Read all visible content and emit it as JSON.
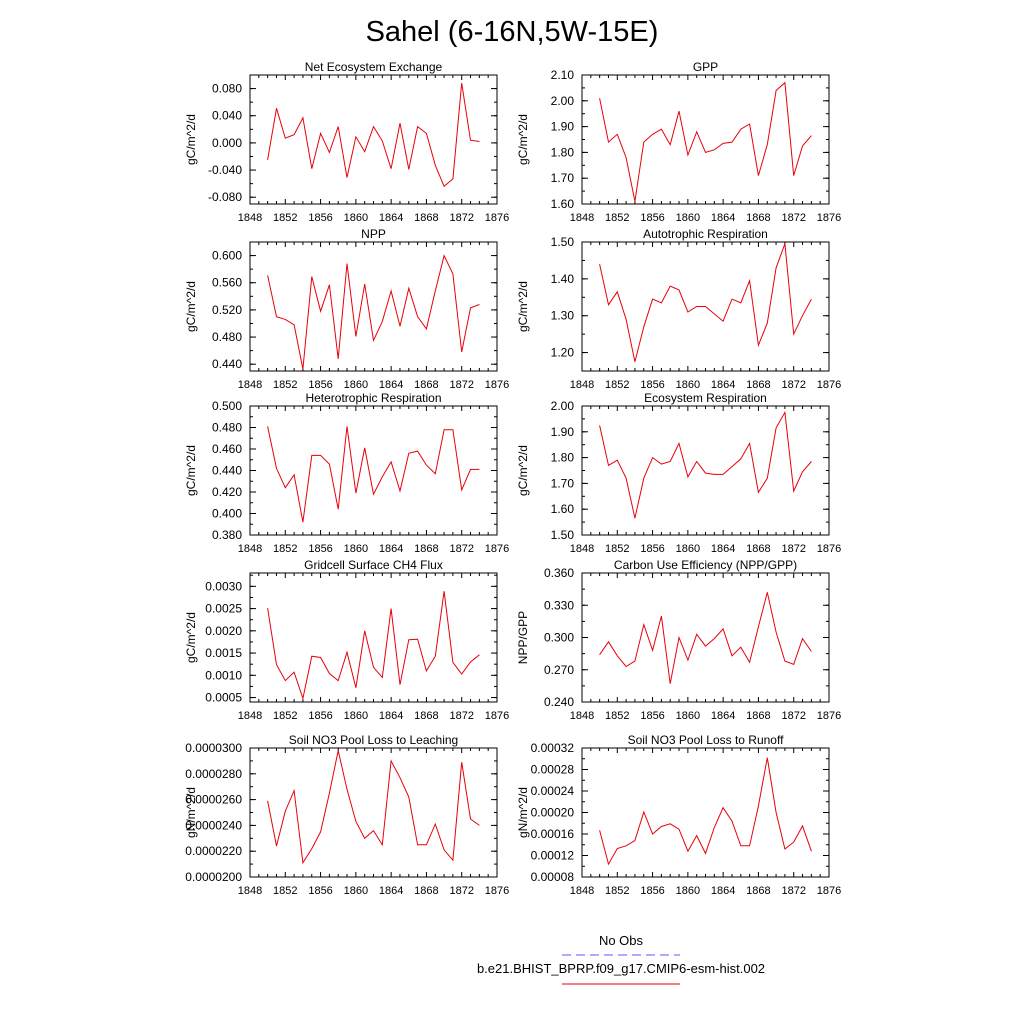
{
  "title": "Sahel (6-16N,5W-15E)",
  "legend": {
    "entries": [
      {
        "label": "No Obs",
        "color": "#5a5aff",
        "dash": true
      },
      {
        "label": "b.e21.BHIST_BPRP.f09_g17.CMIP6-esm-hist.002",
        "color": "#e8000b",
        "dash": false
      }
    ]
  },
  "chart_data": [
    {
      "type": "line",
      "title": "Net Ecosystem Exchange",
      "ylabel": "gC/m^2/d",
      "xlabel": "",
      "xlim": [
        1848,
        1876
      ],
      "ylim": [
        -0.09,
        0.1
      ],
      "xticks": [
        1848,
        1852,
        1856,
        1860,
        1864,
        1868,
        1872,
        1876
      ],
      "yticks": [
        "-0.080",
        "-0.040",
        "0.000",
        "0.040",
        "0.080"
      ],
      "x": [
        1850,
        1851,
        1852,
        1853,
        1854,
        1855,
        1856,
        1857,
        1858,
        1859,
        1860,
        1861,
        1862,
        1863,
        1864,
        1865,
        1866,
        1867,
        1868,
        1869,
        1870,
        1871,
        1872,
        1873,
        1874
      ],
      "series": [
        {
          "color": "#e8000b",
          "values": [
            -0.025,
            0.051,
            0.007,
            0.012,
            0.037,
            -0.038,
            0.014,
            -0.014,
            0.024,
            -0.051,
            0.009,
            -0.013,
            0.024,
            0.003,
            -0.038,
            0.029,
            -0.039,
            0.024,
            0.014,
            -0.033,
            -0.064,
            -0.053,
            0.088,
            0.004,
            0.002
          ]
        }
      ]
    },
    {
      "type": "line",
      "title": "GPP",
      "ylabel": "gC/m^2/d",
      "xlabel": "",
      "xlim": [
        1848,
        1876
      ],
      "ylim": [
        1.6,
        2.1
      ],
      "xticks": [
        1848,
        1852,
        1856,
        1860,
        1864,
        1868,
        1872,
        1876
      ],
      "yticks": [
        "1.60",
        "1.70",
        "1.80",
        "1.90",
        "2.00",
        "2.10"
      ],
      "x": [
        1850,
        1851,
        1852,
        1853,
        1854,
        1855,
        1856,
        1857,
        1858,
        1859,
        1860,
        1861,
        1862,
        1863,
        1864,
        1865,
        1866,
        1867,
        1868,
        1869,
        1870,
        1871,
        1872,
        1873,
        1874
      ],
      "series": [
        {
          "color": "#e8000b",
          "values": [
            2.01,
            1.84,
            1.87,
            1.78,
            1.61,
            1.84,
            1.87,
            1.89,
            1.83,
            1.96,
            1.79,
            1.88,
            1.8,
            1.81,
            1.835,
            1.84,
            1.89,
            1.91,
            1.71,
            1.83,
            2.04,
            2.07,
            1.71,
            1.825,
            1.865
          ]
        }
      ]
    },
    {
      "type": "line",
      "title": "NPP",
      "ylabel": "gC/m^2/d",
      "xlabel": "",
      "xlim": [
        1848,
        1876
      ],
      "ylim": [
        0.43,
        0.62
      ],
      "xticks": [
        1848,
        1852,
        1856,
        1860,
        1864,
        1868,
        1872,
        1876
      ],
      "yticks": [
        "0.440",
        "0.480",
        "0.520",
        "0.560",
        "0.600"
      ],
      "x": [
        1850,
        1851,
        1852,
        1853,
        1854,
        1855,
        1856,
        1857,
        1858,
        1859,
        1860,
        1861,
        1862,
        1863,
        1864,
        1865,
        1866,
        1867,
        1868,
        1869,
        1870,
        1871,
        1872,
        1873,
        1874
      ],
      "series": [
        {
          "color": "#e8000b",
          "values": [
            0.571,
            0.51,
            0.506,
            0.498,
            0.433,
            0.569,
            0.518,
            0.557,
            0.448,
            0.588,
            0.481,
            0.558,
            0.475,
            0.503,
            0.548,
            0.496,
            0.552,
            0.51,
            0.492,
            0.548,
            0.6,
            0.573,
            0.458,
            0.523,
            0.528
          ]
        }
      ]
    },
    {
      "type": "line",
      "title": "Autotrophic Respiration",
      "ylabel": "gC/m^2/d",
      "xlabel": "",
      "xlim": [
        1848,
        1876
      ],
      "ylim": [
        1.15,
        1.5
      ],
      "xticks": [
        1848,
        1852,
        1856,
        1860,
        1864,
        1868,
        1872,
        1876
      ],
      "yticks": [
        "1.20",
        "1.30",
        "1.40",
        "1.50"
      ],
      "x": [
        1850,
        1851,
        1852,
        1853,
        1854,
        1855,
        1856,
        1857,
        1858,
        1859,
        1860,
        1861,
        1862,
        1863,
        1864,
        1865,
        1866,
        1867,
        1868,
        1869,
        1870,
        1871,
        1872,
        1873,
        1874
      ],
      "series": [
        {
          "color": "#e8000b",
          "values": [
            1.44,
            1.33,
            1.365,
            1.29,
            1.175,
            1.27,
            1.345,
            1.335,
            1.38,
            1.37,
            1.31,
            1.325,
            1.325,
            1.305,
            1.285,
            1.345,
            1.335,
            1.395,
            1.22,
            1.28,
            1.43,
            1.495,
            1.25,
            1.3,
            1.345
          ]
        }
      ]
    },
    {
      "type": "line",
      "title": "Heterotrophic Respiration",
      "ylabel": "gC/m^2/d",
      "xlabel": "",
      "xlim": [
        1848,
        1876
      ],
      "ylim": [
        0.38,
        0.5
      ],
      "xticks": [
        1848,
        1852,
        1856,
        1860,
        1864,
        1868,
        1872,
        1876
      ],
      "yticks": [
        "0.380",
        "0.400",
        "0.420",
        "0.440",
        "0.460",
        "0.480",
        "0.500"
      ],
      "x": [
        1850,
        1851,
        1852,
        1853,
        1854,
        1855,
        1856,
        1857,
        1858,
        1859,
        1860,
        1861,
        1862,
        1863,
        1864,
        1865,
        1866,
        1867,
        1868,
        1869,
        1870,
        1871,
        1872,
        1873,
        1874
      ],
      "series": [
        {
          "color": "#e8000b",
          "values": [
            0.481,
            0.442,
            0.424,
            0.436,
            0.392,
            0.454,
            0.454,
            0.446,
            0.404,
            0.481,
            0.419,
            0.461,
            0.418,
            0.434,
            0.448,
            0.421,
            0.456,
            0.458,
            0.445,
            0.437,
            0.478,
            0.478,
            0.422,
            0.441,
            0.441
          ]
        }
      ]
    },
    {
      "type": "line",
      "title": "Ecosystem Respiration",
      "ylabel": "gC/m^2/d",
      "xlabel": "",
      "xlim": [
        1848,
        1876
      ],
      "ylim": [
        1.5,
        2.0
      ],
      "xticks": [
        1848,
        1852,
        1856,
        1860,
        1864,
        1868,
        1872,
        1876
      ],
      "yticks": [
        "1.50",
        "1.60",
        "1.70",
        "1.80",
        "1.90",
        "2.00"
      ],
      "x": [
        1850,
        1851,
        1852,
        1853,
        1854,
        1855,
        1856,
        1857,
        1858,
        1859,
        1860,
        1861,
        1862,
        1863,
        1864,
        1865,
        1866,
        1867,
        1868,
        1869,
        1870,
        1871,
        1872,
        1873,
        1874
      ],
      "series": [
        {
          "color": "#e8000b",
          "values": [
            1.925,
            1.77,
            1.79,
            1.72,
            1.565,
            1.72,
            1.8,
            1.775,
            1.785,
            1.855,
            1.725,
            1.785,
            1.74,
            1.735,
            1.735,
            1.765,
            1.795,
            1.855,
            1.665,
            1.72,
            1.915,
            1.975,
            1.67,
            1.745,
            1.785
          ]
        }
      ]
    },
    {
      "type": "line",
      "title": "Gridcell Surface CH4 Flux",
      "ylabel": "gC/m^2/d",
      "xlabel": "",
      "xlim": [
        1848,
        1876
      ],
      "ylim": [
        0.0004,
        0.0033
      ],
      "xticks": [
        1848,
        1852,
        1856,
        1860,
        1864,
        1868,
        1872,
        1876
      ],
      "yticks": [
        "0.0005",
        "0.0010",
        "0.0015",
        "0.0020",
        "0.0025",
        "0.0030"
      ],
      "x": [
        1850,
        1851,
        1852,
        1853,
        1854,
        1855,
        1856,
        1857,
        1858,
        1859,
        1860,
        1861,
        1862,
        1863,
        1864,
        1865,
        1866,
        1867,
        1868,
        1869,
        1870,
        1871,
        1872,
        1873,
        1874
      ],
      "series": [
        {
          "color": "#e8000b",
          "values": [
            0.00251,
            0.00124,
            0.00088,
            0.00107,
            0.00048,
            0.00143,
            0.0014,
            0.00104,
            0.00088,
            0.00152,
            0.00072,
            0.002,
            0.00118,
            0.00095,
            0.0025,
            0.00079,
            0.0018,
            0.00181,
            0.0011,
            0.00143,
            0.00289,
            0.00129,
            0.00103,
            0.0013,
            0.00146
          ]
        }
      ]
    },
    {
      "type": "line",
      "title": "Carbon Use Efficiency (NPP/GPP)",
      "ylabel": "NPP/GPP",
      "xlabel": "",
      "xlim": [
        1848,
        1876
      ],
      "ylim": [
        0.24,
        0.36
      ],
      "xticks": [
        1848,
        1852,
        1856,
        1860,
        1864,
        1868,
        1872,
        1876
      ],
      "yticks": [
        "0.240",
        "0.270",
        "0.300",
        "0.330",
        "0.360"
      ],
      "x": [
        1850,
        1851,
        1852,
        1853,
        1854,
        1855,
        1856,
        1857,
        1858,
        1859,
        1860,
        1861,
        1862,
        1863,
        1864,
        1865,
        1866,
        1867,
        1868,
        1869,
        1870,
        1871,
        1872,
        1873,
        1874
      ],
      "series": [
        {
          "color": "#e8000b",
          "values": [
            0.284,
            0.296,
            0.283,
            0.273,
            0.278,
            0.312,
            0.288,
            0.32,
            0.257,
            0.3,
            0.279,
            0.303,
            0.292,
            0.299,
            0.308,
            0.283,
            0.291,
            0.277,
            0.31,
            0.342,
            0.305,
            0.278,
            0.275,
            0.299,
            0.287
          ]
        }
      ]
    },
    {
      "type": "line",
      "title": "Soil NO3 Pool Loss to Leaching",
      "ylabel": "gN/m^2/d",
      "xlabel": "",
      "xlim": [
        1848,
        1876
      ],
      "ylim": [
        2e-05,
        3e-05
      ],
      "xticks": [
        1848,
        1852,
        1856,
        1860,
        1864,
        1868,
        1872,
        1876
      ],
      "yticks": [
        "0.0000200",
        "0.0000220",
        "0.0000240",
        "0.0000260",
        "0.0000280",
        "0.0000300"
      ],
      "x": [
        1850,
        1851,
        1852,
        1853,
        1854,
        1855,
        1856,
        1857,
        1858,
        1859,
        1860,
        1861,
        1862,
        1863,
        1864,
        1865,
        1866,
        1867,
        1868,
        1869,
        1870,
        1871,
        1872,
        1873,
        1874
      ],
      "series": [
        {
          "color": "#e8000b",
          "values": [
            2.59e-05,
            2.24e-05,
            2.51e-05,
            2.67e-05,
            2.11e-05,
            2.22e-05,
            2.35e-05,
            2.65e-05,
            2.98e-05,
            2.68e-05,
            2.43e-05,
            2.3e-05,
            2.36e-05,
            2.25e-05,
            2.9e-05,
            2.77e-05,
            2.62e-05,
            2.25e-05,
            2.25e-05,
            2.41e-05,
            2.21e-05,
            2.13e-05,
            2.89e-05,
            2.45e-05,
            2.4e-05
          ]
        }
      ]
    },
    {
      "type": "line",
      "title": "Soil NO3 Pool Loss to Runoff",
      "ylabel": "gN/m^2/d",
      "xlabel": "",
      "xlim": [
        1848,
        1876
      ],
      "ylim": [
        8e-05,
        0.00032
      ],
      "xticks": [
        1848,
        1852,
        1856,
        1860,
        1864,
        1868,
        1872,
        1876
      ],
      "yticks": [
        "0.00008",
        "0.00012",
        "0.00016",
        "0.00020",
        "0.00024",
        "0.00028",
        "0.00032"
      ],
      "x": [
        1850,
        1851,
        1852,
        1853,
        1854,
        1855,
        1856,
        1857,
        1858,
        1859,
        1860,
        1861,
        1862,
        1863,
        1864,
        1865,
        1866,
        1867,
        1868,
        1869,
        1870,
        1871,
        1872,
        1873,
        1874
      ],
      "series": [
        {
          "color": "#e8000b",
          "values": [
            0.000167,
            0.000104,
            0.000133,
            0.000138,
            0.000148,
            0.000201,
            0.00016,
            0.000174,
            0.000179,
            0.000169,
            0.000128,
            0.000157,
            0.000124,
            0.000172,
            0.000209,
            0.000184,
            0.000138,
            0.000138,
            0.000212,
            0.000302,
            0.0002,
            0.000132,
            0.000145,
            0.000175,
            0.000128
          ]
        }
      ]
    }
  ]
}
